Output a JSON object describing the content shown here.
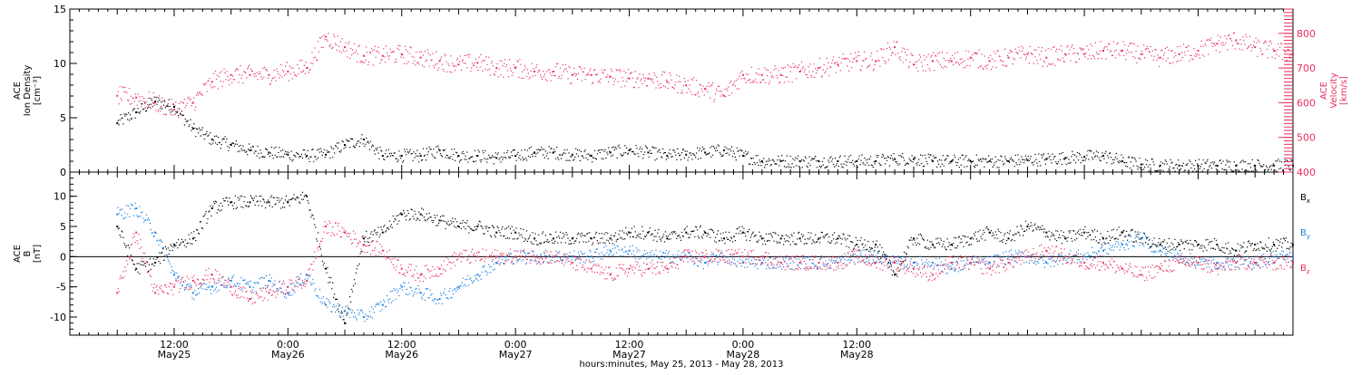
{
  "colors": {
    "black": "#000000",
    "pink": "#e8315f",
    "blue": "#1a7fe0",
    "axis": "#000000"
  },
  "chart_data": [
    {
      "type": "scatter",
      "ylabel_left": [
        "ACE",
        "Ion Density",
        "[cm⁻³]"
      ],
      "ylabel_right": [
        "ACE",
        "Velocity",
        "[km/s]"
      ],
      "ylim_left": [
        0,
        15
      ],
      "ylim_right": [
        400,
        870
      ],
      "yticks_left": [
        "0",
        "5",
        "10",
        "15"
      ],
      "yticks_right": [
        "400",
        "500",
        "600",
        "700",
        "800"
      ],
      "grid": false,
      "series": [
        {
          "name": "Ion Density",
          "axis": "left",
          "color": "#000000",
          "x_hours": [
            0,
            2,
            4,
            6,
            8,
            10,
            12,
            14,
            16,
            18,
            20,
            22,
            24,
            26,
            28,
            30,
            32,
            34,
            36,
            38,
            40,
            42,
            44,
            46,
            48,
            50,
            52,
            54,
            56,
            58,
            60,
            62,
            64,
            66,
            68,
            70,
            72,
            74,
            76,
            78,
            80,
            82,
            84,
            86,
            88,
            90,
            92,
            94,
            96,
            98,
            100,
            102,
            104,
            106,
            108,
            110,
            112,
            114,
            116,
            118,
            120,
            122,
            124
          ],
          "values": [
            4.5,
            5.5,
            6.5,
            6.0,
            4.0,
            3.0,
            2.5,
            2.0,
            1.8,
            1.6,
            1.5,
            1.6,
            2.5,
            3.0,
            1.5,
            1.5,
            1.5,
            2.0,
            1.5,
            1.5,
            1.3,
            1.5,
            1.8,
            1.8,
            1.6,
            1.5,
            1.8,
            2.0,
            1.8,
            1.5,
            1.6,
            1.8,
            2.0,
            1.5,
            1.0,
            1.0,
            1.0,
            1.0,
            1.0,
            1.0,
            1.0,
            1.2,
            1.2,
            1.0,
            1.0,
            1.0,
            1.0,
            1.0,
            1.1,
            1.2,
            1.3,
            1.4,
            1.5,
            1.0,
            0.7,
            0.6,
            0.6,
            0.6,
            0.6,
            0.6,
            0.6,
            0.6,
            0.6
          ]
        },
        {
          "name": "Velocity",
          "axis": "right",
          "color": "#e8315f",
          "x_hours": [
            0,
            2,
            4,
            6,
            8,
            10,
            12,
            14,
            16,
            18,
            20,
            22,
            24,
            26,
            28,
            30,
            32,
            34,
            36,
            38,
            40,
            42,
            44,
            46,
            48,
            50,
            52,
            54,
            56,
            58,
            60,
            62,
            64,
            66,
            68,
            70,
            72,
            74,
            76,
            78,
            80,
            82,
            84,
            86,
            88,
            90,
            92,
            94,
            96,
            98,
            100,
            102,
            104,
            106,
            108,
            110,
            112,
            114,
            116,
            118,
            120,
            122,
            124
          ],
          "values": [
            620,
            615,
            600,
            580,
            600,
            660,
            680,
            680,
            680,
            690,
            700,
            790,
            760,
            735,
            735,
            740,
            730,
            720,
            710,
            715,
            700,
            700,
            690,
            690,
            680,
            680,
            675,
            670,
            670,
            660,
            650,
            640,
            620,
            680,
            680,
            680,
            690,
            700,
            710,
            720,
            720,
            760,
            710,
            720,
            720,
            730,
            720,
            730,
            740,
            730,
            740,
            740,
            750,
            750,
            740,
            730,
            740,
            750,
            770,
            780,
            760,
            750,
            740
          ]
        }
      ]
    },
    {
      "type": "scatter",
      "ylabel": [
        "ACE",
        "B",
        "[nT]"
      ],
      "ylim": [
        -13,
        14
      ],
      "yticks": [
        "-10",
        "-5",
        "0",
        "5",
        "10"
      ],
      "zero_line": true,
      "legend_position": "right",
      "series": [
        {
          "name": "Bx",
          "color": "#000000",
          "x_hours": [
            0,
            2,
            4,
            6,
            8,
            10,
            12,
            14,
            16,
            18,
            20,
            22,
            24,
            26,
            28,
            30,
            32,
            34,
            36,
            38,
            40,
            42,
            44,
            46,
            48,
            50,
            52,
            54,
            56,
            58,
            60,
            62,
            64,
            66,
            68,
            70,
            72,
            74,
            76,
            78,
            80,
            82,
            84,
            86,
            88,
            90,
            92,
            94,
            96,
            98,
            100,
            102,
            104,
            106,
            108,
            110,
            112,
            114,
            116,
            118,
            120,
            122,
            124
          ],
          "values": [
            5,
            -2,
            -1,
            2,
            3,
            8,
            9,
            9,
            9,
            9,
            10,
            -2,
            -11,
            3,
            4,
            7,
            7,
            6,
            5,
            5,
            4,
            4,
            3,
            3,
            3,
            3,
            3,
            4,
            4,
            3,
            4,
            4,
            3,
            4,
            3,
            3,
            3,
            3,
            3,
            2,
            2,
            -3,
            3,
            2,
            2,
            3,
            4,
            3,
            5,
            4,
            3,
            4,
            3,
            4,
            3,
            2,
            2,
            2,
            2,
            1,
            2,
            2,
            2
          ]
        },
        {
          "name": "By",
          "color": "#1a7fe0",
          "x_hours": [
            0,
            2,
            4,
            6,
            8,
            10,
            12,
            14,
            16,
            18,
            20,
            22,
            24,
            26,
            28,
            30,
            32,
            34,
            36,
            38,
            40,
            42,
            44,
            46,
            48,
            50,
            52,
            54,
            56,
            58,
            60,
            62,
            64,
            66,
            68,
            70,
            72,
            74,
            76,
            78,
            80,
            82,
            84,
            86,
            88,
            90,
            92,
            94,
            96,
            98,
            100,
            102,
            104,
            106,
            108,
            110,
            112,
            114,
            116,
            118,
            120,
            122,
            124
          ],
          "values": [
            7,
            8,
            4,
            -3,
            -6,
            -5,
            -4,
            -5,
            -4,
            -6,
            -3,
            -8,
            -9,
            -10,
            -8,
            -5,
            -6,
            -7,
            -5,
            -3,
            -1,
            0,
            0,
            0,
            0,
            0,
            1,
            1,
            0,
            0,
            0,
            -1,
            0,
            -1,
            -1,
            -1,
            -1,
            -1,
            -1,
            0,
            0,
            -1,
            -1,
            -1,
            -2,
            -1,
            -1,
            0,
            0,
            -1,
            0,
            0,
            1,
            2,
            3,
            1,
            0,
            -1,
            -1,
            -1,
            -1,
            0,
            0
          ]
        },
        {
          "name": "Bz",
          "color": "#e8315f",
          "x_hours": [
            0,
            2,
            4,
            6,
            8,
            10,
            12,
            14,
            16,
            18,
            20,
            22,
            24,
            26,
            28,
            30,
            32,
            34,
            36,
            38,
            40,
            42,
            44,
            46,
            48,
            50,
            52,
            54,
            56,
            58,
            60,
            62,
            64,
            66,
            68,
            70,
            72,
            74,
            76,
            78,
            80,
            82,
            84,
            86,
            88,
            90,
            92,
            94,
            96,
            98,
            100,
            102,
            104,
            106,
            108,
            110,
            112,
            114,
            116,
            118,
            120,
            122,
            124
          ],
          "values": [
            -6,
            4,
            -6,
            -5,
            -4,
            -3,
            -5,
            -7,
            -6,
            -5,
            -4,
            5,
            4,
            2,
            1,
            -2,
            -3,
            -2,
            0,
            0,
            0,
            0,
            0,
            0,
            -1,
            -2,
            -3,
            -2,
            -2,
            -2,
            0,
            0,
            0,
            0,
            0,
            -1,
            -1,
            -1,
            -1,
            0,
            -1,
            -1,
            -2,
            -3,
            -1,
            -1,
            -2,
            -1,
            0,
            1,
            0,
            -1,
            -1,
            -2,
            -3,
            -2,
            -1,
            -1,
            -2,
            -1,
            -1,
            -1,
            -1
          ]
        }
      ],
      "legend_labels": [
        {
          "base": "B",
          "sub": "x",
          "color": "#000000"
        },
        {
          "base": "B",
          "sub": "y",
          "color": "#1a7fe0"
        },
        {
          "base": "B",
          "sub": "z",
          "color": "#e8315f"
        }
      ]
    }
  ],
  "x_axis": {
    "range_hours": [
      -5,
      124
    ],
    "major_ticks": [
      {
        "hours": 6,
        "time": "12:00",
        "date": "May25"
      },
      {
        "hours": 18,
        "time": "0:00",
        "date": "May26"
      },
      {
        "hours": 30,
        "time": "12:00",
        "date": "May26"
      },
      {
        "hours": 42,
        "time": "0:00",
        "date": "May27"
      },
      {
        "hours": 54,
        "time": "12:00",
        "date": "May27"
      },
      {
        "hours": 66,
        "time": "0:00",
        "date": "May28"
      },
      {
        "hours": 78,
        "time": "12:00",
        "date": "May28"
      }
    ],
    "title": "hours:minutes, May 25, 2013 - May 28, 2013"
  }
}
